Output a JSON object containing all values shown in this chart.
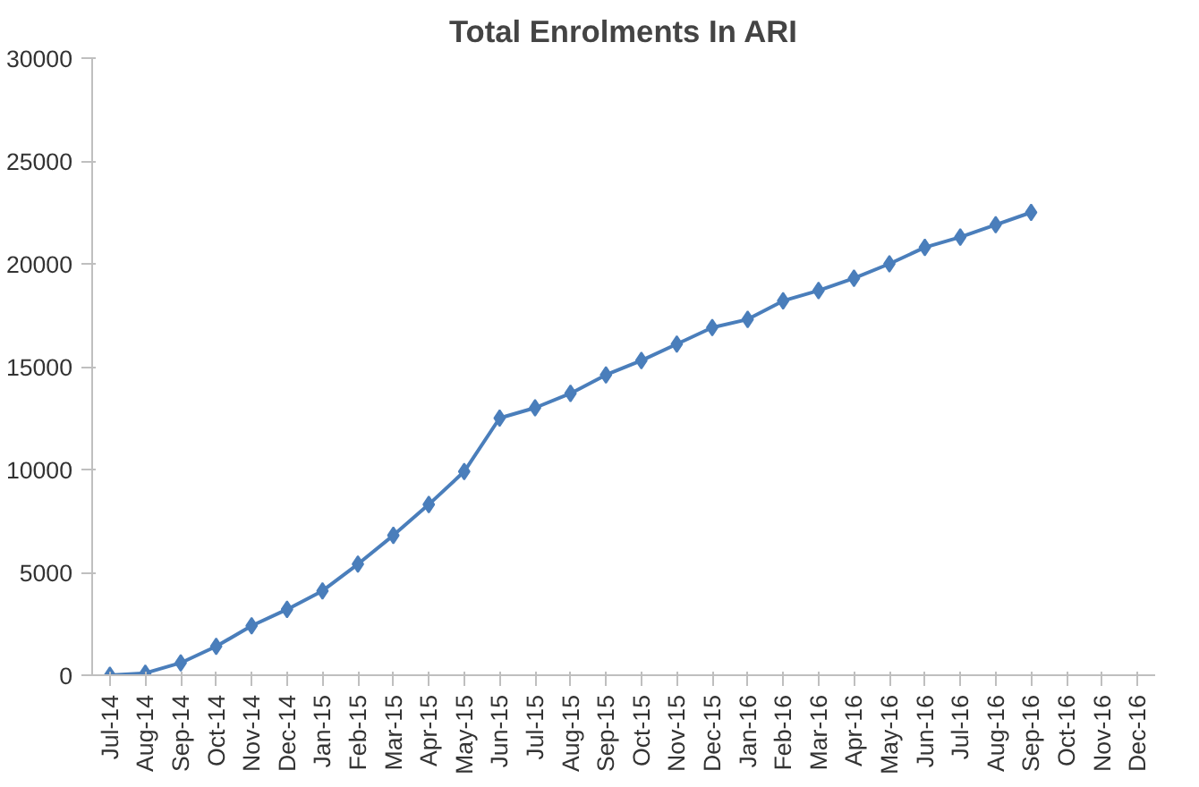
{
  "chart_data": {
    "type": "line",
    "title": "Total Enrolments In ARI",
    "categories": [
      "Jul-14",
      "Aug-14",
      "Sep-14",
      "Oct-14",
      "Nov-14",
      "Dec-14",
      "Jan-15",
      "Feb-15",
      "Mar-15",
      "Apr-15",
      "May-15",
      "Jun-15",
      "Jul-15",
      "Aug-15",
      "Sep-15",
      "Oct-15",
      "Nov-15",
      "Dec-15",
      "Jan-16",
      "Feb-16",
      "Mar-16",
      "Apr-16",
      "May-16",
      "Jun-16",
      "Jul-16",
      "Aug-16",
      "Sep-16",
      "Oct-16",
      "Nov-16",
      "Dec-16"
    ],
    "series": [
      {
        "color": "#4a7ebb",
        "values": [
          0,
          100,
          600,
          1400,
          2400,
          3200,
          4100,
          5400,
          6800,
          8300,
          9900,
          12500,
          13000,
          13700,
          14600,
          15300,
          16100,
          16900,
          17300,
          18200,
          18700,
          19300,
          20000,
          20800,
          21300,
          21900,
          22500,
          null,
          null,
          null
        ]
      }
    ],
    "ylim": [
      0,
      30000
    ],
    "yticks": [
      0,
      5000,
      10000,
      15000,
      20000,
      25000,
      30000
    ],
    "grid": false,
    "marker": "diamond",
    "line_style": "solid"
  }
}
